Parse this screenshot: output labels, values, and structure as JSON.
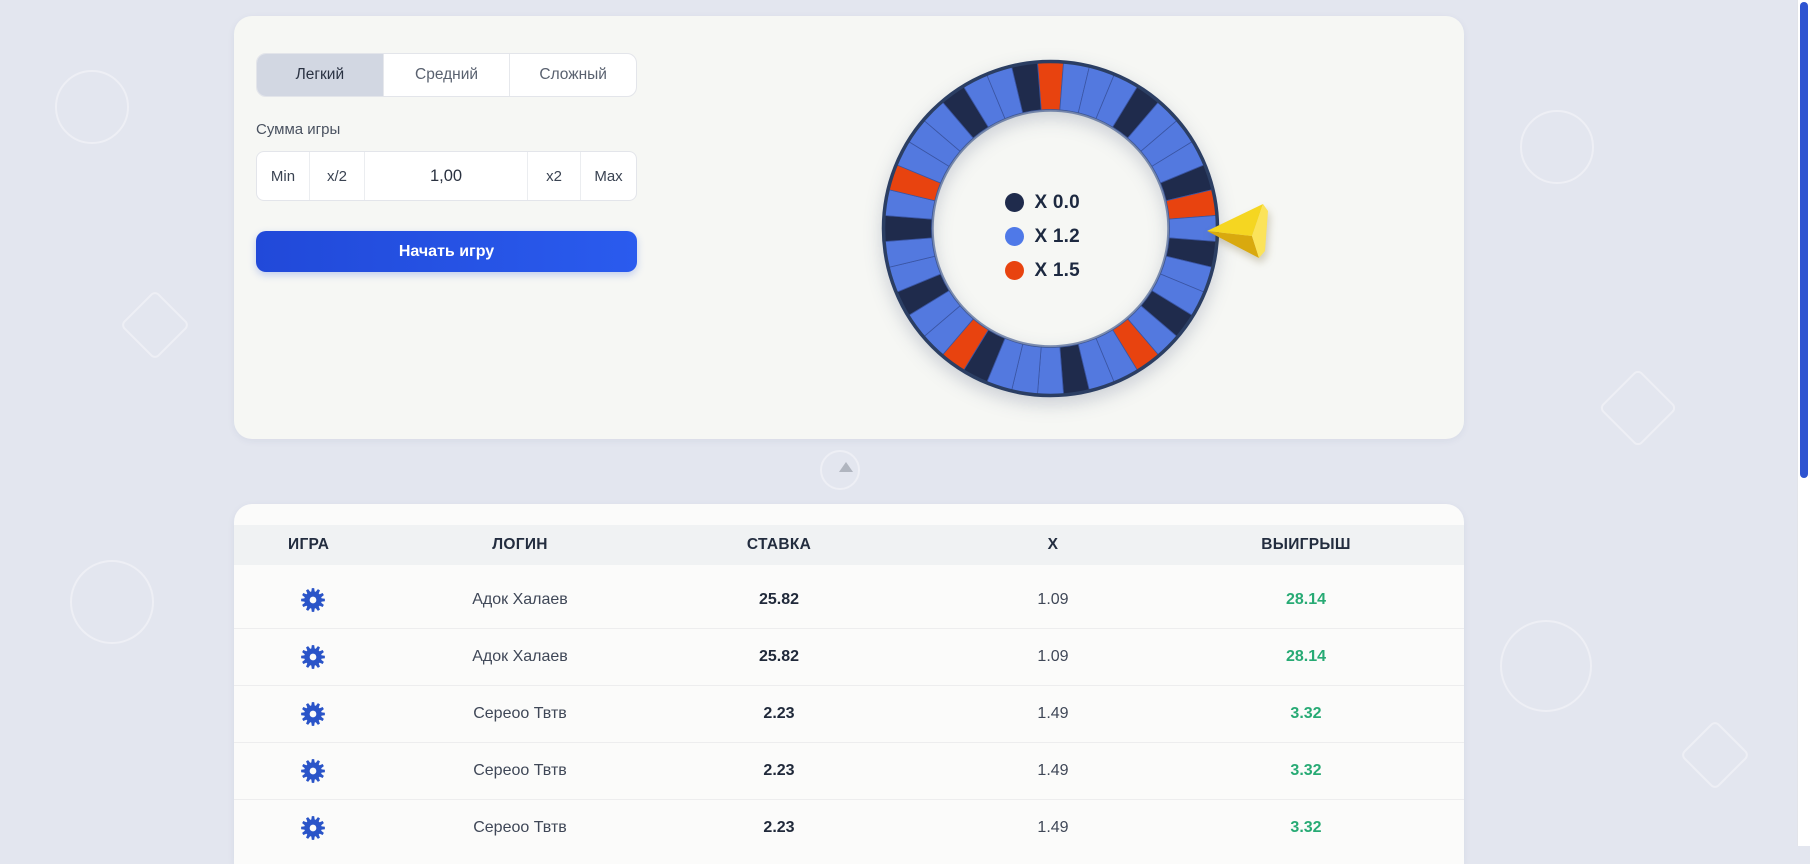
{
  "game_panel": {
    "difficulty_tabs": [
      {
        "label": "Легкий",
        "active": true
      },
      {
        "label": "Средний",
        "active": false
      },
      {
        "label": "Сложный",
        "active": false
      }
    ],
    "amount_label": "Сумма игры",
    "amount_controls": {
      "min": "Min",
      "half": "x/2",
      "value": "1,00",
      "double": "x2",
      "max": "Max"
    },
    "start_button": "Начать игру"
  },
  "wheel": {
    "legend": [
      {
        "label": "X 0.0",
        "color": "#1F2B4C"
      },
      {
        "label": "X 1.2",
        "color": "#4F79E8"
      },
      {
        "label": "X 1.5",
        "color": "#E8430F"
      }
    ],
    "segment_colors": {
      "blue": "#5379DF",
      "navy": "#1F2B4C",
      "red": "#E8430F"
    },
    "segments": [
      "red",
      "blue",
      "blue",
      "blue",
      "navy",
      "blue",
      "blue",
      "blue",
      "navy",
      "red",
      "blue",
      "navy",
      "blue",
      "blue",
      "navy",
      "blue",
      "red",
      "blue",
      "blue",
      "navy",
      "blue",
      "blue",
      "blue",
      "navy",
      "red",
      "blue",
      "blue",
      "navy",
      "blue",
      "blue",
      "navy",
      "blue",
      "red",
      "blue",
      "blue",
      "blue",
      "navy",
      "blue",
      "blue",
      "navy"
    ],
    "pointer_color": "#F5D621"
  },
  "history_table": {
    "headers": [
      "ИГРА",
      "ЛОГИН",
      "СТАВКА",
      "X",
      "ВЫИГРЫШ"
    ],
    "rows": [
      {
        "login": "Адок Халаев",
        "bet": "25.82",
        "x": "1.09",
        "win": "28.14"
      },
      {
        "login": "Адок Халаев",
        "bet": "25.82",
        "x": "1.09",
        "win": "28.14"
      },
      {
        "login": "Сереоо Твтв",
        "bet": "2.23",
        "x": "1.49",
        "win": "3.32"
      },
      {
        "login": "Сереоо Твтв",
        "bet": "2.23",
        "x": "1.49",
        "win": "3.32"
      },
      {
        "login": "Сереоо Твтв",
        "bet": "2.23",
        "x": "1.49",
        "win": "3.32"
      }
    ],
    "win_color": "#27AA74",
    "gear_icon_color": "#2A54C8"
  }
}
